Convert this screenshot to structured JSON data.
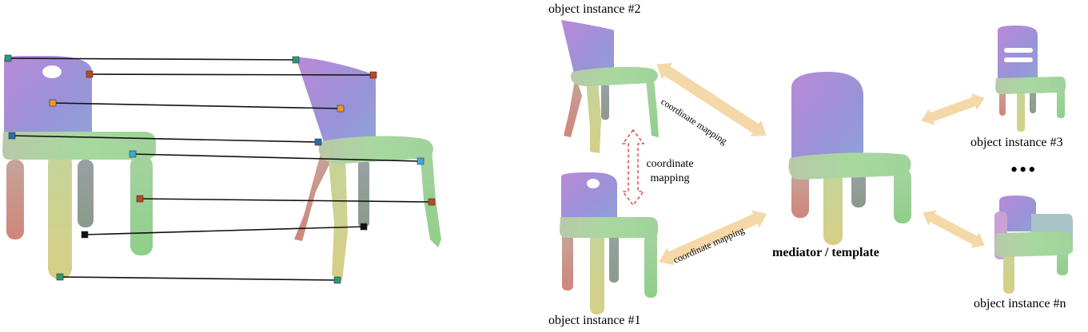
{
  "labels": {
    "instance2": "object instance #2",
    "instance1": "object instance #1",
    "instance3": "object instance #3",
    "instancen": "object instance #n",
    "template": "mediator / template",
    "map_top": "coordinate mapping",
    "map_bottom": "coordinate mapping",
    "map_vertical_line1": "coordinate",
    "map_vertical_line2": "mapping",
    "ellipsis": "•••"
  },
  "colors": {
    "purple": "#b08ad6",
    "blue": "#8c9ad8",
    "green": "#9ed39a",
    "yellow": "#d8d08a",
    "rose": "#d4877a",
    "arrow": "#f5d8a8",
    "dashed": "#e03030",
    "marker_teal": "#2a9a78",
    "marker_rust": "#b84a1e",
    "marker_orange": "#e89a2a",
    "marker_blue": "#2a6ab0",
    "marker_cyan": "#3aaad8",
    "marker_black": "#111111"
  }
}
